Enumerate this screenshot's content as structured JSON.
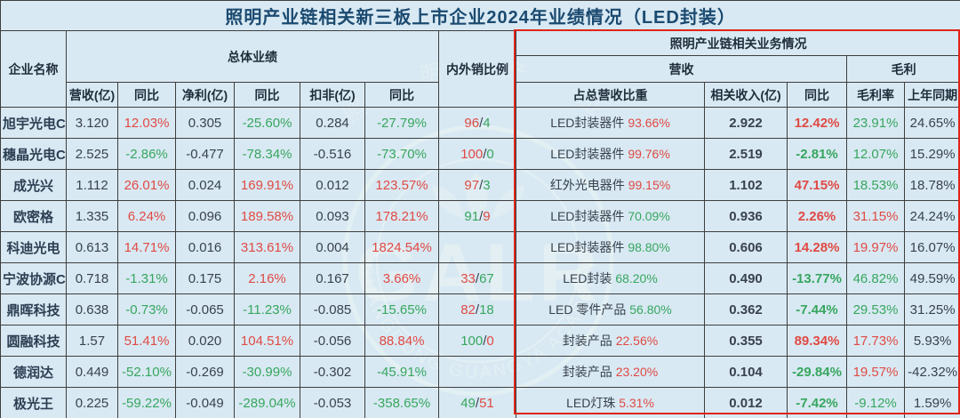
{
  "title": "照明产业链相关新三板上市企业2024年业绩情况（LED封装）",
  "header": {
    "company": "企业名称",
    "overall_group": "总体业绩",
    "domestic_export": "内外销比例",
    "related_section": "照明产业链相关业务情况",
    "revenue_group": "营收",
    "gross_group": "毛利",
    "sub": [
      "营收(亿)",
      "同比",
      "净利(亿)",
      "同比",
      "扣非(亿)",
      "同比",
      "占总营收比重",
      "相关收入(亿)",
      "同比",
      "毛利率",
      "上年同期"
    ]
  },
  "colors": {
    "background": "#d8e9f3",
    "grid": "#3e3e3e",
    "title_navy": "#1b4a70",
    "positive_red": "#e04a44",
    "negative_green": "#37a65e",
    "dark_value": "#39424e",
    "highlight_border": "#e0251a"
  },
  "watermark": {
    "letters": "GALR",
    "ring_text_en": "GUANGDONG GUANGYA ACADEMY OF LIGHTING",
    "ring_text_cn": "照 明 产 业"
  },
  "rows": [
    {
      "name": "旭宇光电C",
      "overall": [
        [
          "3.120",
          "k"
        ],
        [
          "12.03%",
          "r"
        ],
        [
          "0.305",
          "k"
        ],
        [
          "-25.60%",
          "g"
        ],
        [
          "0.284",
          "k"
        ],
        [
          "-27.79%",
          "g"
        ]
      ],
      "ratio": [
        [
          "96",
          "r"
        ],
        [
          "4",
          "g"
        ]
      ],
      "biz": [
        "LED封装器件",
        "93.66%",
        "r"
      ],
      "rel": [
        [
          "2.922",
          "k"
        ],
        [
          "12.42%",
          "r"
        ]
      ],
      "gross": [
        [
          "23.91%",
          "g"
        ],
        [
          "24.65%",
          "k"
        ]
      ]
    },
    {
      "name": "穗晶光电C",
      "overall": [
        [
          "2.525",
          "k"
        ],
        [
          "-2.86%",
          "g"
        ],
        [
          "-0.477",
          "k"
        ],
        [
          "-78.34%",
          "g"
        ],
        [
          "-0.516",
          "k"
        ],
        [
          "-73.70%",
          "g"
        ]
      ],
      "ratio": [
        [
          "100",
          "r"
        ],
        [
          "0",
          "g"
        ]
      ],
      "biz": [
        "LED封装器件",
        "99.76%",
        "r"
      ],
      "rel": [
        [
          "2.519",
          "k"
        ],
        [
          "-2.81%",
          "g"
        ]
      ],
      "gross": [
        [
          "12.07%",
          "g"
        ],
        [
          "15.29%",
          "k"
        ]
      ]
    },
    {
      "name": "成光兴",
      "overall": [
        [
          "1.112",
          "k"
        ],
        [
          "26.01%",
          "r"
        ],
        [
          "0.024",
          "k"
        ],
        [
          "169.91%",
          "r"
        ],
        [
          "0.012",
          "k"
        ],
        [
          "123.57%",
          "r"
        ]
      ],
      "ratio": [
        [
          "97",
          "r"
        ],
        [
          "3",
          "g"
        ]
      ],
      "biz": [
        "红外光电器件",
        "99.15%",
        "r"
      ],
      "rel": [
        [
          "1.102",
          "k"
        ],
        [
          "47.15%",
          "r"
        ]
      ],
      "gross": [
        [
          "18.53%",
          "g"
        ],
        [
          "18.78%",
          "k"
        ]
      ]
    },
    {
      "name": "欧密格",
      "overall": [
        [
          "1.335",
          "k"
        ],
        [
          "6.24%",
          "r"
        ],
        [
          "0.096",
          "k"
        ],
        [
          "189.58%",
          "r"
        ],
        [
          "0.093",
          "k"
        ],
        [
          "178.21%",
          "r"
        ]
      ],
      "ratio": [
        [
          "91",
          "g"
        ],
        [
          "9",
          "r"
        ]
      ],
      "biz": [
        "LED封装器件",
        "70.09%",
        "g"
      ],
      "rel": [
        [
          "0.936",
          "k"
        ],
        [
          "2.26%",
          "r"
        ]
      ],
      "gross": [
        [
          "31.15%",
          "r"
        ],
        [
          "24.24%",
          "k"
        ]
      ]
    },
    {
      "name": "科迪光电",
      "overall": [
        [
          "0.613",
          "k"
        ],
        [
          "14.71%",
          "r"
        ],
        [
          "0.016",
          "k"
        ],
        [
          "313.61%",
          "r"
        ],
        [
          "0.004",
          "k"
        ],
        [
          "1824.54%",
          "r"
        ]
      ],
      "ratio": null,
      "biz": [
        "LED封装器件",
        "98.80%",
        "g"
      ],
      "rel": [
        [
          "0.606",
          "k"
        ],
        [
          "14.28%",
          "r"
        ]
      ],
      "gross": [
        [
          "19.97%",
          "r"
        ],
        [
          "16.07%",
          "k"
        ]
      ]
    },
    {
      "name": "宁波协源C",
      "overall": [
        [
          "0.718",
          "k"
        ],
        [
          "-1.31%",
          "g"
        ],
        [
          "0.175",
          "k"
        ],
        [
          "2.16%",
          "r"
        ],
        [
          "0.167",
          "k"
        ],
        [
          "3.66%",
          "r"
        ]
      ],
      "ratio": [
        [
          "33",
          "r"
        ],
        [
          "67",
          "g"
        ]
      ],
      "biz": [
        "LED封装",
        "68.20%",
        "g"
      ],
      "rel": [
        [
          "0.490",
          "k"
        ],
        [
          "-13.77%",
          "g"
        ]
      ],
      "gross": [
        [
          "46.82%",
          "g"
        ],
        [
          "49.59%",
          "k"
        ]
      ]
    },
    {
      "name": "鼎晖科技",
      "overall": [
        [
          "0.638",
          "k"
        ],
        [
          "-0.73%",
          "g"
        ],
        [
          "-0.065",
          "k"
        ],
        [
          "-11.23%",
          "g"
        ],
        [
          "-0.085",
          "k"
        ],
        [
          "-15.65%",
          "g"
        ]
      ],
      "ratio": [
        [
          "82",
          "r"
        ],
        [
          "18",
          "g"
        ]
      ],
      "biz": [
        "LED 零件产品",
        "56.80%",
        "g"
      ],
      "rel": [
        [
          "0.362",
          "k"
        ],
        [
          "-7.44%",
          "g"
        ]
      ],
      "gross": [
        [
          "29.53%",
          "g"
        ],
        [
          "31.25%",
          "k"
        ]
      ]
    },
    {
      "name": "圆融科技",
      "overall": [
        [
          "1.57",
          "k"
        ],
        [
          "51.41%",
          "r"
        ],
        [
          "0.020",
          "k"
        ],
        [
          "104.51%",
          "r"
        ],
        [
          "-0.056",
          "k"
        ],
        [
          "88.84%",
          "r"
        ]
      ],
      "ratio": [
        [
          "100",
          "g"
        ],
        [
          "0",
          "r"
        ]
      ],
      "biz": [
        "封装产品",
        "22.56%",
        "r"
      ],
      "rel": [
        [
          "0.355",
          "k"
        ],
        [
          "89.34%",
          "r"
        ]
      ],
      "gross": [
        [
          "17.73%",
          "r"
        ],
        [
          "5.93%",
          "k"
        ]
      ]
    },
    {
      "name": "德润达",
      "overall": [
        [
          "0.449",
          "k"
        ],
        [
          "-52.10%",
          "g"
        ],
        [
          "-0.269",
          "k"
        ],
        [
          "-30.99%",
          "g"
        ],
        [
          "-0.302",
          "k"
        ],
        [
          "-45.91%",
          "g"
        ]
      ],
      "ratio": null,
      "biz": [
        "封装产品",
        "23.20%",
        "r"
      ],
      "rel": [
        [
          "0.104",
          "k"
        ],
        [
          "-29.84%",
          "g"
        ]
      ],
      "gross": [
        [
          "19.57%",
          "r"
        ],
        [
          "-42.32%",
          "k"
        ]
      ]
    },
    {
      "name": "极光王",
      "overall": [
        [
          "0.225",
          "k"
        ],
        [
          "-59.22%",
          "g"
        ],
        [
          "-0.049",
          "k"
        ],
        [
          "-289.04%",
          "g"
        ],
        [
          "-0.053",
          "k"
        ],
        [
          "-358.65%",
          "g"
        ]
      ],
      "ratio": [
        [
          "49",
          "g"
        ],
        [
          "51",
          "r"
        ]
      ],
      "biz": [
        "LED灯珠",
        "5.31%",
        "r"
      ],
      "rel": [
        [
          "0.012",
          "k"
        ],
        [
          "-7.42%",
          "g"
        ]
      ],
      "gross": [
        [
          "-9.12%",
          "g"
        ],
        [
          "1.59%",
          "k"
        ]
      ]
    }
  ]
}
